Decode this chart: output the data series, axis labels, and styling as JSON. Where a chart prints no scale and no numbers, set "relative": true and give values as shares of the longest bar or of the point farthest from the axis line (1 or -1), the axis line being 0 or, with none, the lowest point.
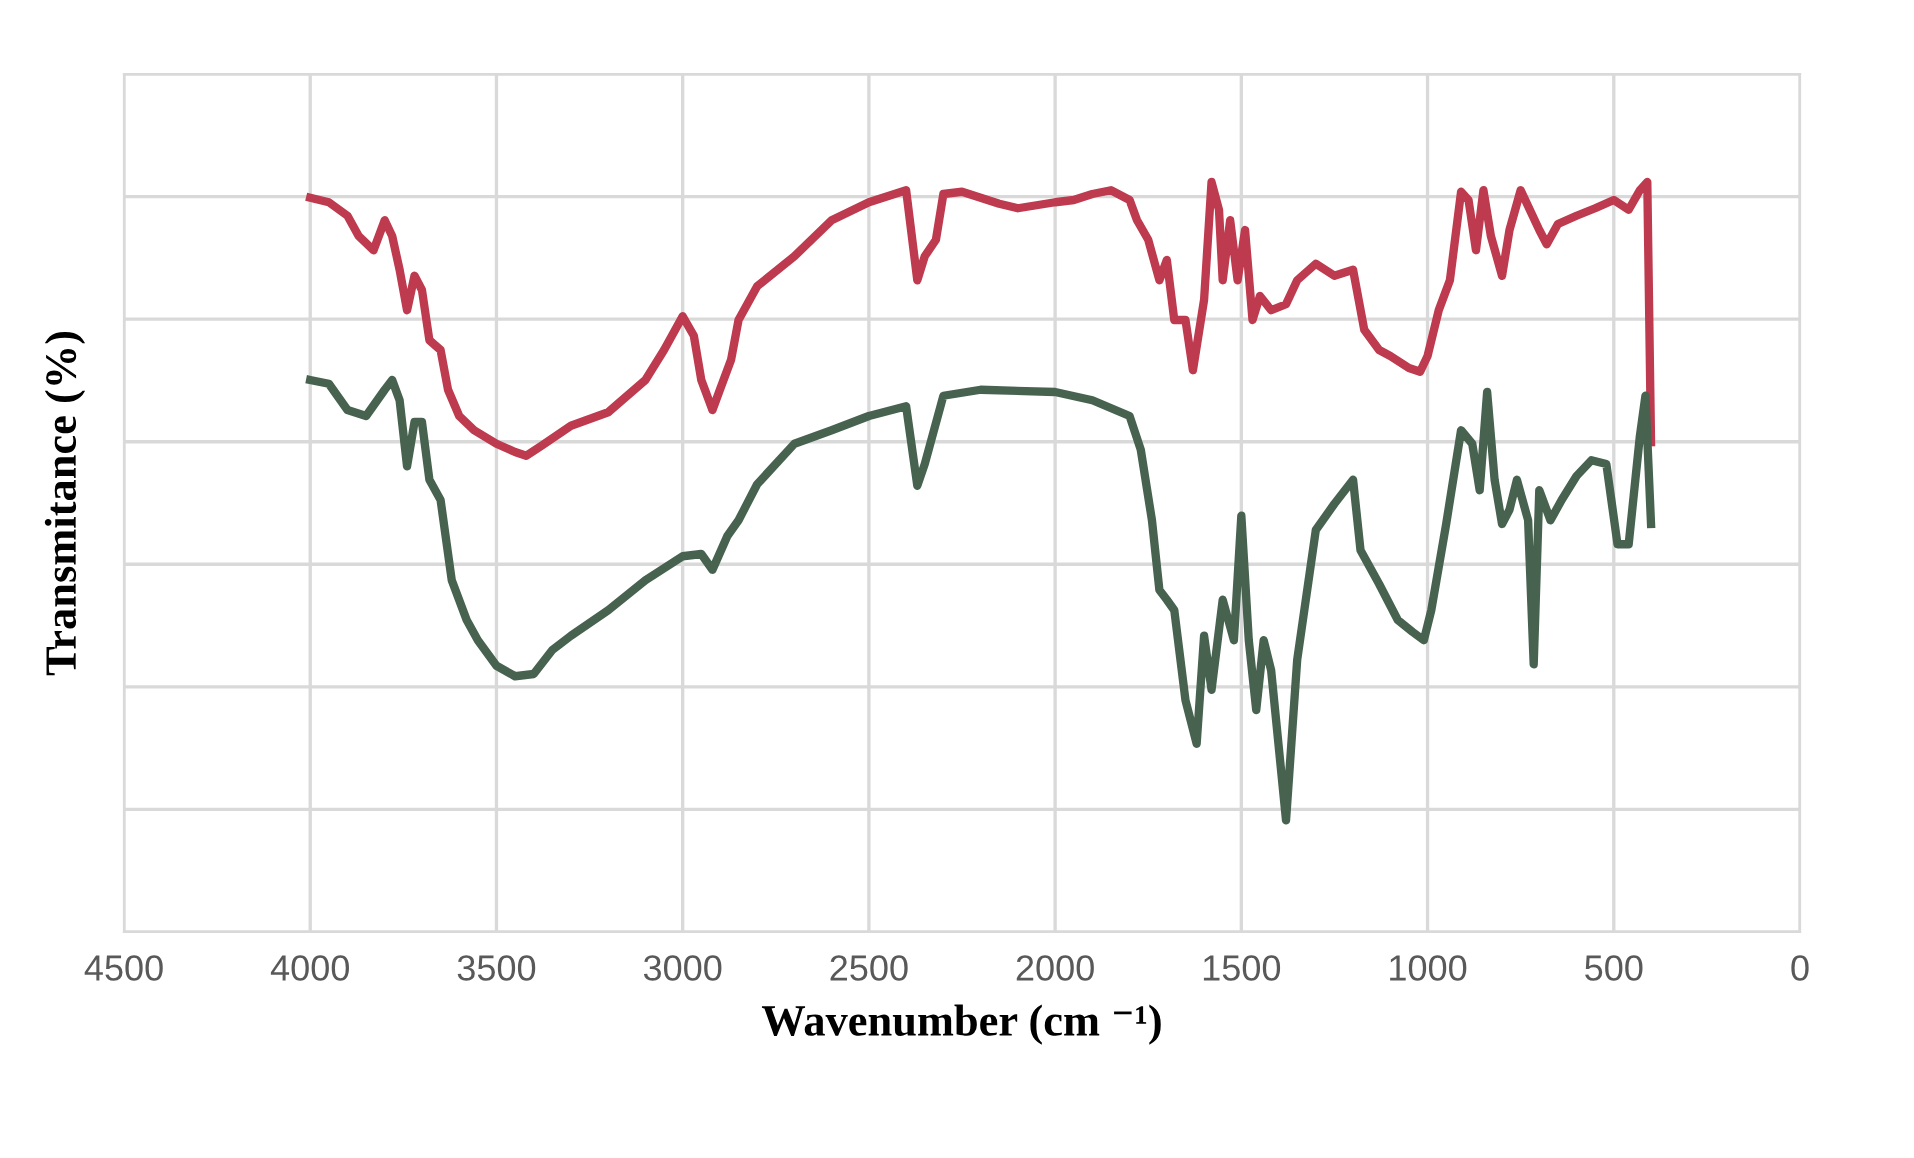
{
  "chart_data": {
    "type": "line",
    "relative": true,
    "xlabel": "Wavenumber (cm ⁻¹)",
    "ylabel": "Transmitance (%)",
    "xlim": [
      4500,
      0
    ],
    "xticks": [
      4500,
      4000,
      3500,
      3000,
      2500,
      2000,
      1500,
      1000,
      500,
      0
    ],
    "grid": true,
    "tick_labels": "x",
    "legend": false,
    "series": [
      {
        "color": "#be3a4e",
        "x": [
          4000,
          3950,
          3900,
          3870,
          3830,
          3800,
          3780,
          3760,
          3740,
          3720,
          3700,
          3680,
          3650,
          3630,
          3600,
          3560,
          3500,
          3450,
          3420,
          3380,
          3300,
          3200,
          3100,
          3050,
          3000,
          2970,
          2950,
          2920,
          2900,
          2870,
          2850,
          2800,
          2700,
          2600,
          2500,
          2400,
          2370,
          2350,
          2320,
          2300,
          2250,
          2150,
          2100,
          2000,
          1950,
          1900,
          1850,
          1800,
          1780,
          1750,
          1720,
          1700,
          1680,
          1650,
          1630,
          1600,
          1580,
          1560,
          1550,
          1530,
          1510,
          1490,
          1470,
          1450,
          1420,
          1380,
          1350,
          1300,
          1250,
          1200,
          1170,
          1130,
          1100,
          1050,
          1020,
          1000,
          970,
          940,
          910,
          890,
          870,
          850,
          830,
          800,
          780,
          750,
          700,
          680,
          650,
          600,
          550,
          500,
          460,
          430,
          410,
          400
        ],
        "values": [
          0.979,
          0.973,
          0.955,
          0.928,
          0.909,
          0.949,
          0.928,
          0.883,
          0.829,
          0.875,
          0.856,
          0.789,
          0.776,
          0.723,
          0.688,
          0.669,
          0.651,
          0.64,
          0.635,
          0.648,
          0.675,
          0.693,
          0.736,
          0.776,
          0.821,
          0.795,
          0.736,
          0.696,
          0.723,
          0.763,
          0.816,
          0.861,
          0.901,
          0.949,
          0.973,
          0.989,
          0.869,
          0.901,
          0.923,
          0.984,
          0.987,
          0.971,
          0.965,
          0.973,
          0.976,
          0.984,
          0.989,
          0.976,
          0.949,
          0.923,
          0.869,
          0.896,
          0.816,
          0.816,
          0.749,
          0.843,
          1,
          0.963,
          0.869,
          0.949,
          0.869,
          0.936,
          0.816,
          0.848,
          0.829,
          0.837,
          0.869,
          0.891,
          0.875,
          0.883,
          0.803,
          0.776,
          0.768,
          0.752,
          0.747,
          0.768,
          0.829,
          0.869,
          0.987,
          0.976,
          0.909,
          0.989,
          0.928,
          0.875,
          0.936,
          0.989,
          0.936,
          0.917,
          0.944,
          0.955,
          0.965,
          0.976,
          0.963,
          0.989,
          1,
          0.653
        ]
      },
      {
        "color": "#476350",
        "x": [
          4000,
          3950,
          3900,
          3850,
          3800,
          3780,
          3760,
          3740,
          3720,
          3700,
          3680,
          3650,
          3620,
          3580,
          3550,
          3500,
          3450,
          3400,
          3350,
          3300,
          3200,
          3100,
          3000,
          2950,
          2920,
          2880,
          2850,
          2800,
          2700,
          2600,
          2500,
          2400,
          2370,
          2350,
          2300,
          2200,
          2000,
          1900,
          1800,
          1770,
          1740,
          1720,
          1700,
          1680,
          1650,
          1620,
          1600,
          1580,
          1550,
          1520,
          1500,
          1480,
          1460,
          1440,
          1420,
          1380,
          1350,
          1300,
          1250,
          1200,
          1180,
          1130,
          1080,
          1040,
          1010,
          990,
          950,
          910,
          880,
          860,
          840,
          820,
          800,
          780,
          760,
          730,
          715,
          700,
          670,
          640,
          600,
          560,
          520,
          490,
          460,
          430,
          415,
          400
        ],
        "values": [
          0.736,
          0.731,
          0.696,
          0.688,
          0.723,
          0.736,
          0.709,
          0.621,
          0.68,
          0.68,
          0.603,
          0.576,
          0.469,
          0.416,
          0.389,
          0.355,
          0.341,
          0.344,
          0.376,
          0.395,
          0.429,
          0.469,
          0.501,
          0.504,
          0.483,
          0.528,
          0.549,
          0.597,
          0.651,
          0.669,
          0.688,
          0.701,
          0.595,
          0.624,
          0.715,
          0.723,
          0.72,
          0.709,
          0.688,
          0.643,
          0.549,
          0.456,
          0.443,
          0.429,
          0.309,
          0.251,
          0.395,
          0.323,
          0.443,
          0.389,
          0.555,
          0.389,
          0.296,
          0.389,
          0.349,
          0.149,
          0.363,
          0.536,
          0.571,
          0.603,
          0.509,
          0.464,
          0.416,
          0.4,
          0.389,
          0.429,
          0.544,
          0.669,
          0.651,
          0.589,
          0.72,
          0.603,
          0.544,
          0.563,
          0.603,
          0.549,
          0.357,
          0.589,
          0.549,
          0.576,
          0.608,
          0.629,
          0.624,
          0.517,
          0.517,
          0.661,
          0.715,
          0.544
        ]
      }
    ]
  }
}
